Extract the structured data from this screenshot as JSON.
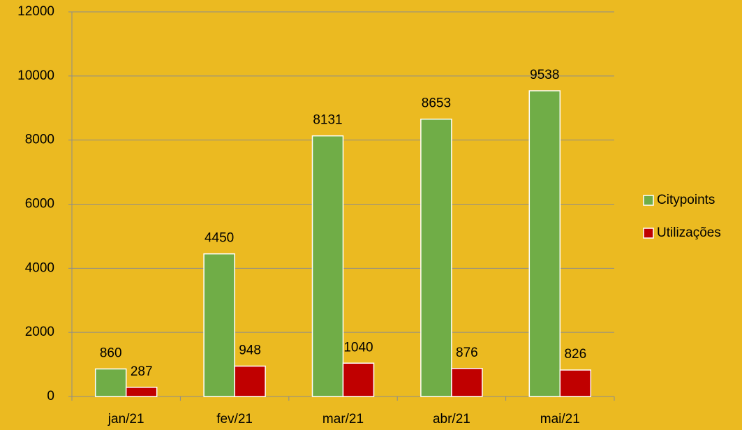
{
  "chart_data": {
    "type": "bar",
    "categories": [
      "jan/21",
      "fev/21",
      "mar/21",
      "abr/21",
      "mai/21"
    ],
    "series": [
      {
        "name": "Citypoints",
        "color": "#70ad47",
        "values": [
          860,
          4450,
          8131,
          8653,
          9538
        ]
      },
      {
        "name": "Utilizações",
        "color": "#c00000",
        "values": [
          287,
          948,
          1040,
          876,
          826
        ]
      }
    ],
    "ylim": [
      0,
      12000
    ],
    "yticks": [
      0,
      2000,
      4000,
      6000,
      8000,
      10000,
      12000
    ],
    "grid": true,
    "legend": "right",
    "background": "#ebba21"
  }
}
